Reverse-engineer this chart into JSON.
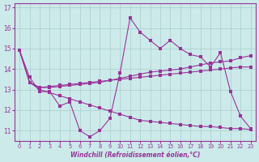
{
  "xlabel": "Windchill (Refroidissement éolien,°C)",
  "background_color": "#cceaea",
  "line_color": "#993399",
  "xlim": [
    -0.5,
    23.5
  ],
  "ylim": [
    10.5,
    17.2
  ],
  "yticks": [
    11,
    12,
    13,
    14,
    15,
    16,
    17
  ],
  "xticks": [
    0,
    1,
    2,
    3,
    4,
    5,
    6,
    7,
    8,
    9,
    10,
    11,
    12,
    13,
    14,
    15,
    16,
    17,
    18,
    19,
    20,
    21,
    22,
    23
  ],
  "x": [
    0,
    1,
    2,
    3,
    4,
    5,
    6,
    7,
    8,
    9,
    10,
    11,
    12,
    13,
    14,
    15,
    16,
    17,
    18,
    19,
    20,
    21,
    22,
    23
  ],
  "y_jagged": [
    14.9,
    13.6,
    12.9,
    12.9,
    12.2,
    12.4,
    11.0,
    10.7,
    11.0,
    11.6,
    13.8,
    16.5,
    15.8,
    15.4,
    15.0,
    15.4,
    15.0,
    14.7,
    14.6,
    14.1,
    14.8,
    12.9,
    11.7,
    11.1
  ],
  "y_rise1": [
    14.9,
    13.35,
    13.1,
    13.15,
    13.2,
    13.25,
    13.3,
    13.35,
    13.4,
    13.45,
    13.5,
    13.55,
    13.6,
    13.65,
    13.7,
    13.75,
    13.8,
    13.85,
    13.9,
    13.95,
    14.0,
    14.05,
    14.1,
    14.1
  ],
  "y_rise2": [
    14.9,
    13.35,
    13.1,
    13.1,
    13.15,
    13.2,
    13.25,
    13.3,
    13.35,
    13.45,
    13.55,
    13.65,
    13.75,
    13.85,
    13.9,
    13.95,
    14.0,
    14.1,
    14.2,
    14.3,
    14.35,
    14.4,
    14.55,
    14.65
  ],
  "y_fall": [
    14.9,
    13.35,
    13.0,
    12.85,
    12.7,
    12.55,
    12.4,
    12.25,
    12.1,
    11.95,
    11.8,
    11.65,
    11.5,
    11.45,
    11.4,
    11.35,
    11.3,
    11.25,
    11.2,
    11.2,
    11.15,
    11.1,
    11.1,
    11.05
  ]
}
